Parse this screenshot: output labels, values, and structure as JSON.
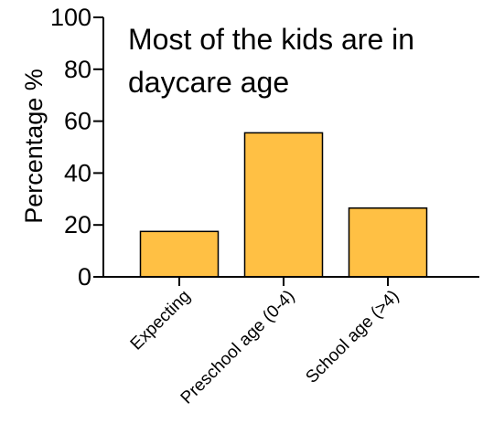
{
  "chart_data": {
    "type": "bar",
    "title": "Most of the kids are in daycare age",
    "title_lines": [
      "Most of the kids are in",
      "daycare age"
    ],
    "xlabel": "",
    "ylabel": "Percentage %",
    "categories": [
      "Expecting",
      "Preschool age (0-4)",
      "School age (>4)"
    ],
    "values": [
      17.5,
      55.5,
      26.5
    ],
    "ylim": [
      0,
      100
    ],
    "yticks": [
      0,
      20,
      40,
      60,
      80,
      100
    ],
    "grid": false,
    "bar_color": "#FFC044",
    "bar_edge_color": "#000000"
  }
}
